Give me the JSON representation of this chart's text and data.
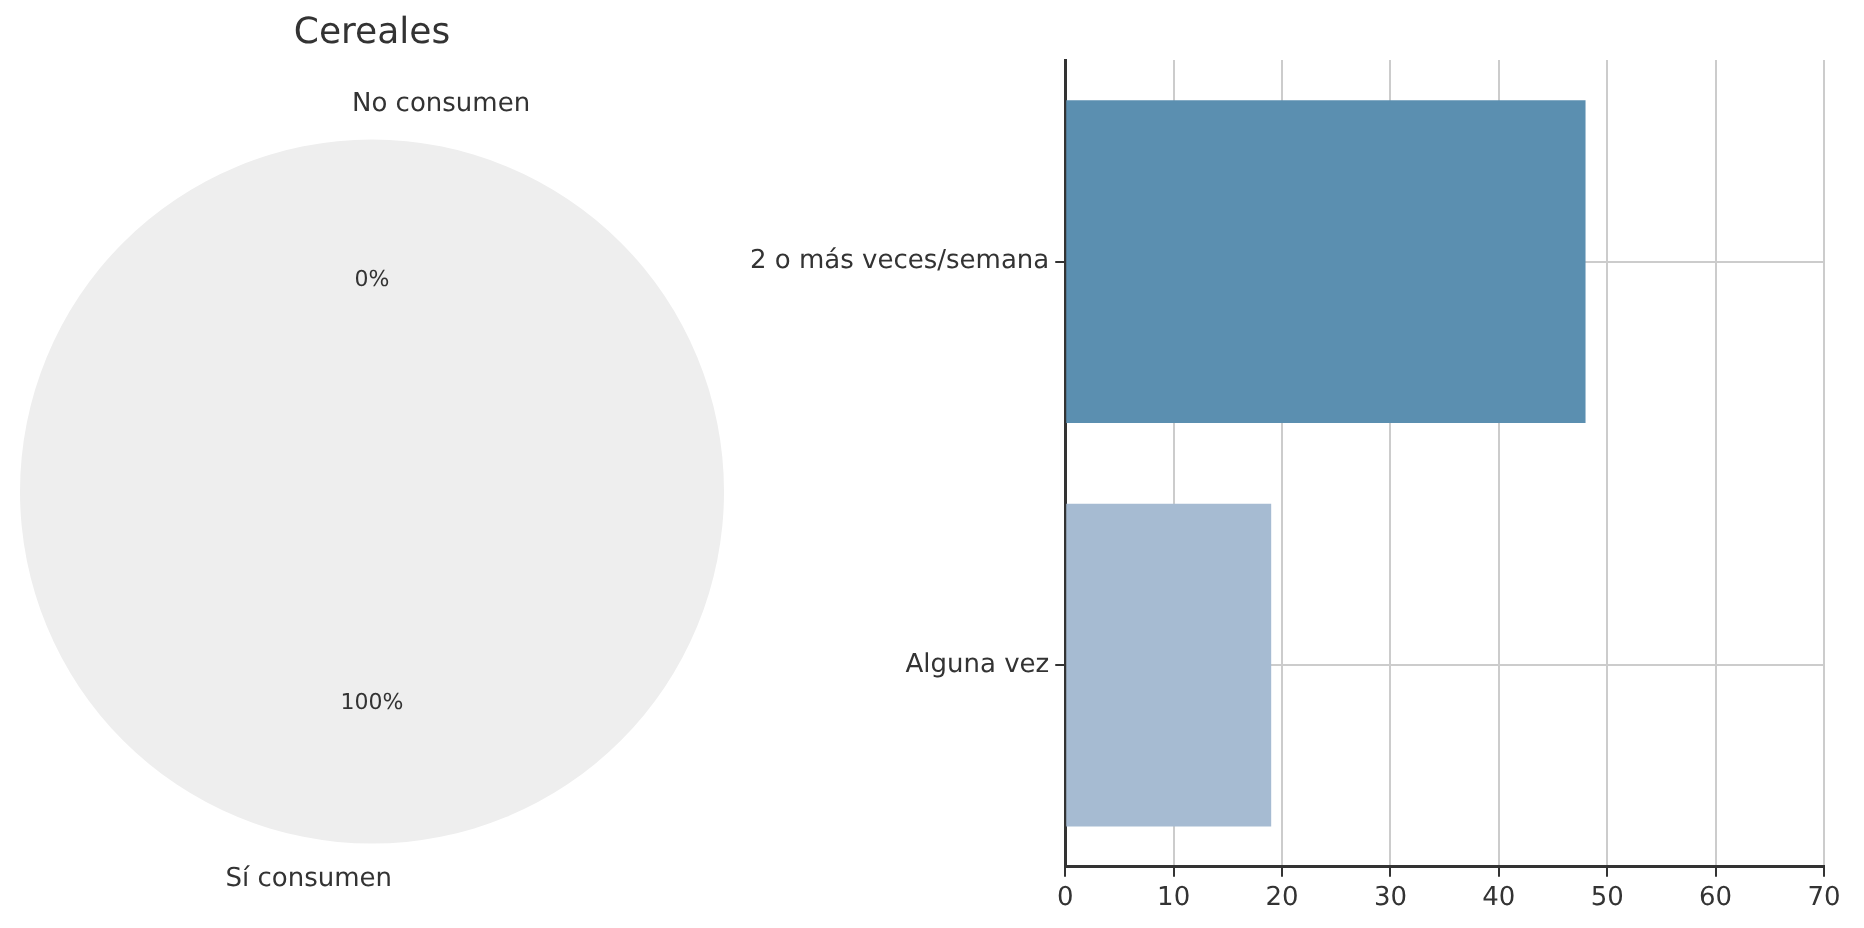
{
  "chart_data": [
    {
      "type": "pie",
      "title": "Cereales",
      "categories": [
        "No consumen",
        "Sí consumen"
      ],
      "values": [
        0,
        100
      ],
      "colors": [
        "#eeeeee",
        "#eeeeee"
      ],
      "value_labels": [
        "0%",
        "100%"
      ]
    },
    {
      "type": "bar",
      "orientation": "horizontal",
      "categories": [
        "2 o más veces/semana",
        "Alguna vez"
      ],
      "values": [
        48,
        19
      ],
      "colors": [
        "#5b8fb0",
        "#a6bbd2"
      ],
      "xlim": [
        0,
        70
      ],
      "xticks": [
        0,
        10,
        20,
        30,
        40,
        50,
        60,
        70
      ],
      "grid": true
    }
  ]
}
